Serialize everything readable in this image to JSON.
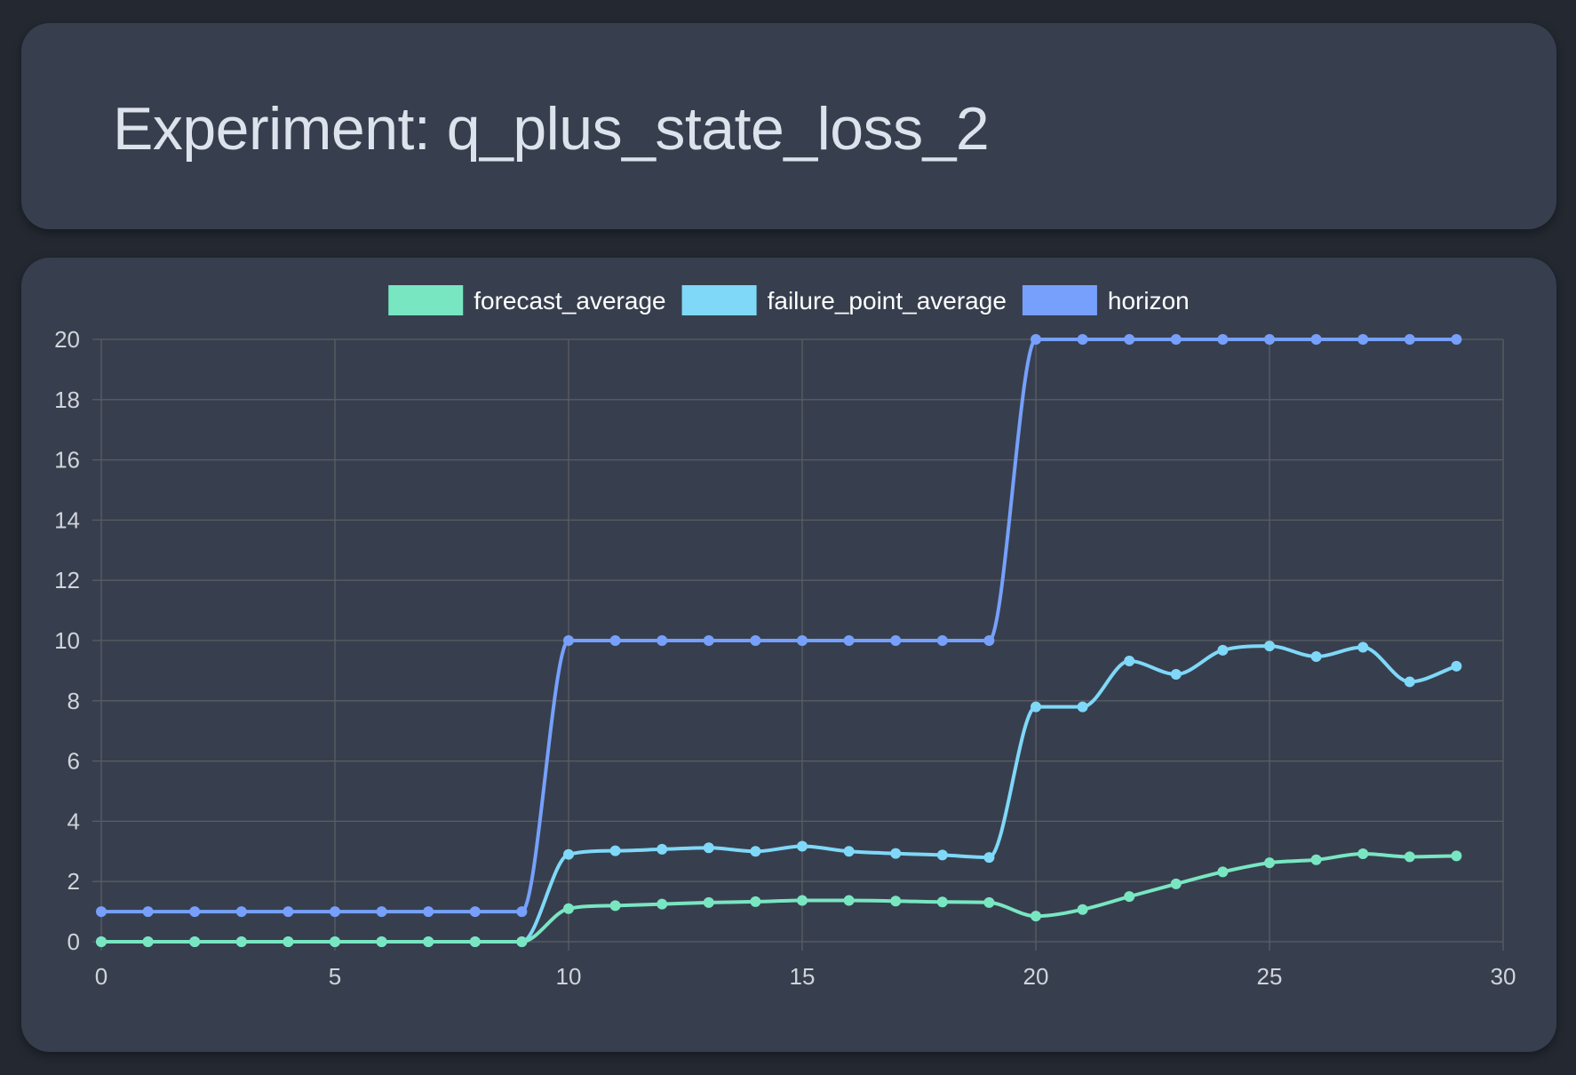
{
  "header": {
    "title": "Experiment: q_plus_state_loss_2"
  },
  "colors": {
    "page_background": "#232831",
    "card_background": "#373f4e",
    "grid": "#5a5d63",
    "tick_text": "#d0d4da",
    "legend_text": "#ffffff"
  },
  "chart_data": {
    "type": "line",
    "title": "",
    "xlabel": "",
    "ylabel": "",
    "xlim": [
      0,
      30
    ],
    "ylim": [
      0,
      20
    ],
    "x_ticks": [
      0,
      5,
      10,
      15,
      20,
      25,
      30
    ],
    "y_ticks": [
      0,
      2,
      4,
      6,
      8,
      10,
      12,
      14,
      16,
      18,
      20
    ],
    "grid": true,
    "legend_position": "top-center",
    "x": [
      0,
      1,
      2,
      3,
      4,
      5,
      6,
      7,
      8,
      9,
      10,
      11,
      12,
      13,
      14,
      15,
      16,
      17,
      18,
      19,
      20,
      21,
      22,
      23,
      24,
      25,
      26,
      27,
      28,
      29
    ],
    "series": [
      {
        "name": "forecast_average",
        "color": "#79e6c2",
        "values": [
          0,
          0,
          0,
          0,
          0,
          0,
          0,
          0,
          0,
          0,
          1.1,
          1.2,
          1.25,
          1.3,
          1.33,
          1.37,
          1.37,
          1.35,
          1.32,
          1.3,
          0.85,
          1.07,
          1.5,
          1.92,
          2.32,
          2.62,
          2.72,
          2.92,
          2.82,
          2.85
        ]
      },
      {
        "name": "failure_point_average",
        "color": "#7fd8f8",
        "values": [
          0,
          0,
          0,
          0,
          0,
          0,
          0,
          0,
          0,
          0,
          2.9,
          3.02,
          3.07,
          3.12,
          3.0,
          3.17,
          3.0,
          2.93,
          2.88,
          2.8,
          7.8,
          7.8,
          9.32,
          8.88,
          9.68,
          9.82,
          9.47,
          9.78,
          8.63,
          9.15
        ]
      },
      {
        "name": "horizon",
        "color": "#76a0fc",
        "values": [
          1,
          1,
          1,
          1,
          1,
          1,
          1,
          1,
          1,
          1,
          10,
          10,
          10,
          10,
          10,
          10,
          10,
          10,
          10,
          10,
          20,
          20,
          20,
          20,
          20,
          20,
          20,
          20,
          20,
          20
        ]
      }
    ]
  }
}
